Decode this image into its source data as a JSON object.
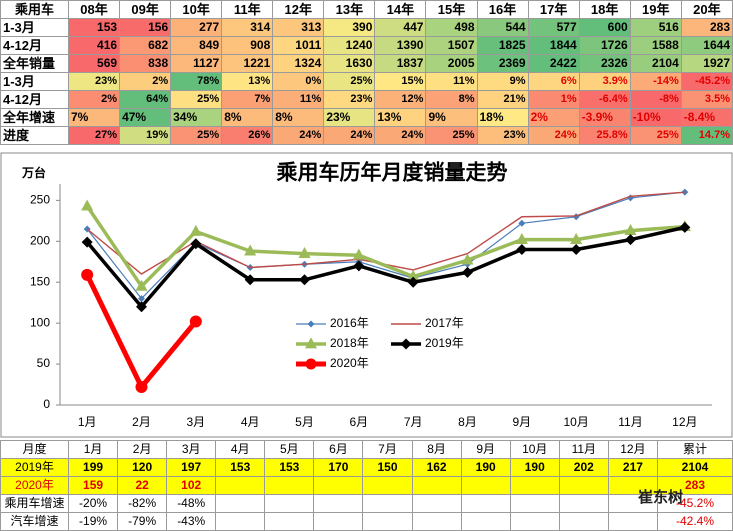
{
  "top_table": {
    "header": [
      "乘用车",
      "08年",
      "09年",
      "10年",
      "11年",
      "12年",
      "13年",
      "14年",
      "15年",
      "16年",
      "17年",
      "18年",
      "19年",
      "20年"
    ],
    "rows": [
      [
        "1-3月",
        "153",
        "156",
        "277",
        "314",
        "313",
        "390",
        "447",
        "498",
        "544",
        "577",
        "600",
        "516",
        "283"
      ],
      [
        "4-12月",
        "416",
        "682",
        "849",
        "908",
        "1011",
        "1240",
        "1390",
        "1507",
        "1825",
        "1844",
        "1726",
        "1588",
        "1644"
      ],
      [
        "全年销量",
        "569",
        "838",
        "1127",
        "1221",
        "1324",
        "1630",
        "1837",
        "2005",
        "2369",
        "2422",
        "2326",
        "2104",
        "1927"
      ],
      [
        "1-3月",
        "23%",
        "2%",
        "78%",
        "13%",
        "0%",
        "25%",
        "15%",
        "11%",
        "9%",
        "6%",
        "3.9%",
        "-14%",
        "-45.2%"
      ],
      [
        "4-12月",
        "2%",
        "64%",
        "25%",
        "7%",
        "11%",
        "23%",
        "12%",
        "8%",
        "21%",
        "1%",
        "-6.4%",
        "-8%",
        "3.5%"
      ],
      [
        "全年增速",
        "7%",
        "47%",
        "34%",
        "8%",
        "8%",
        "23%",
        "13%",
        "9%",
        "18%",
        "2%",
        "-3.9%",
        "-10%",
        "-8.4%"
      ],
      [
        "进度",
        "27%",
        "19%",
        "25%",
        "26%",
        "24%",
        "24%",
        "24%",
        "25%",
        "23%",
        "24%",
        "25.8%",
        "25%",
        "14.7%"
      ]
    ]
  },
  "chart_data": {
    "type": "line",
    "title": "乘用车历年月度销量走势",
    "y_label": "万台",
    "categories": [
      "1月",
      "2月",
      "3月",
      "4月",
      "5月",
      "6月",
      "7月",
      "8月",
      "9月",
      "10月",
      "11月",
      "12月"
    ],
    "series": [
      {
        "name": "2016年",
        "color": "#4a7ebb",
        "marker": "diamond",
        "values": [
          215,
          130,
          198,
          168,
          172,
          175,
          155,
          172,
          222,
          230,
          253,
          260
        ]
      },
      {
        "name": "2017年",
        "color": "#be4b48",
        "marker": "none",
        "values": [
          215,
          160,
          200,
          168,
          172,
          178,
          165,
          185,
          230,
          231,
          255,
          260
        ]
      },
      {
        "name": "2018年",
        "color": "#9bbb59",
        "marker": "triangle",
        "values": [
          243,
          145,
          212,
          188,
          185,
          183,
          157,
          177,
          202,
          202,
          213,
          218
        ]
      },
      {
        "name": "2019年",
        "color": "#000000",
        "marker": "diamond",
        "values": [
          199,
          120,
          197,
          153,
          153,
          170,
          150,
          162,
          190,
          190,
          202,
          217
        ]
      },
      {
        "name": "2020年",
        "color": "#ff0000",
        "marker": "circle",
        "values": [
          159,
          22,
          102,
          null,
          null,
          null,
          null,
          null,
          null,
          null,
          null,
          null
        ]
      }
    ],
    "ylim": [
      0,
      270
    ],
    "yticks": [
      0,
      50,
      100,
      150,
      200,
      250
    ],
    "grid": false,
    "legend": "center"
  },
  "bottom_table": {
    "header_first": "月度",
    "header_last": "累计",
    "rows": [
      {
        "label": "2019年",
        "total": "2104"
      },
      {
        "label": "2020年",
        "total": "283"
      },
      {
        "label": "乘用车增速",
        "values": [
          "-20%",
          "-82%",
          "-48%",
          null,
          null,
          null,
          null,
          null,
          null,
          null,
          null,
          null
        ],
        "total": "-45.2%"
      },
      {
        "label": "汽车增速",
        "values": [
          "-19%",
          "-79%",
          "-43%",
          null,
          null,
          null,
          null,
          null,
          null,
          null,
          null,
          null
        ],
        "total": "-42.4%"
      }
    ]
  },
  "watermark": "崔东树"
}
